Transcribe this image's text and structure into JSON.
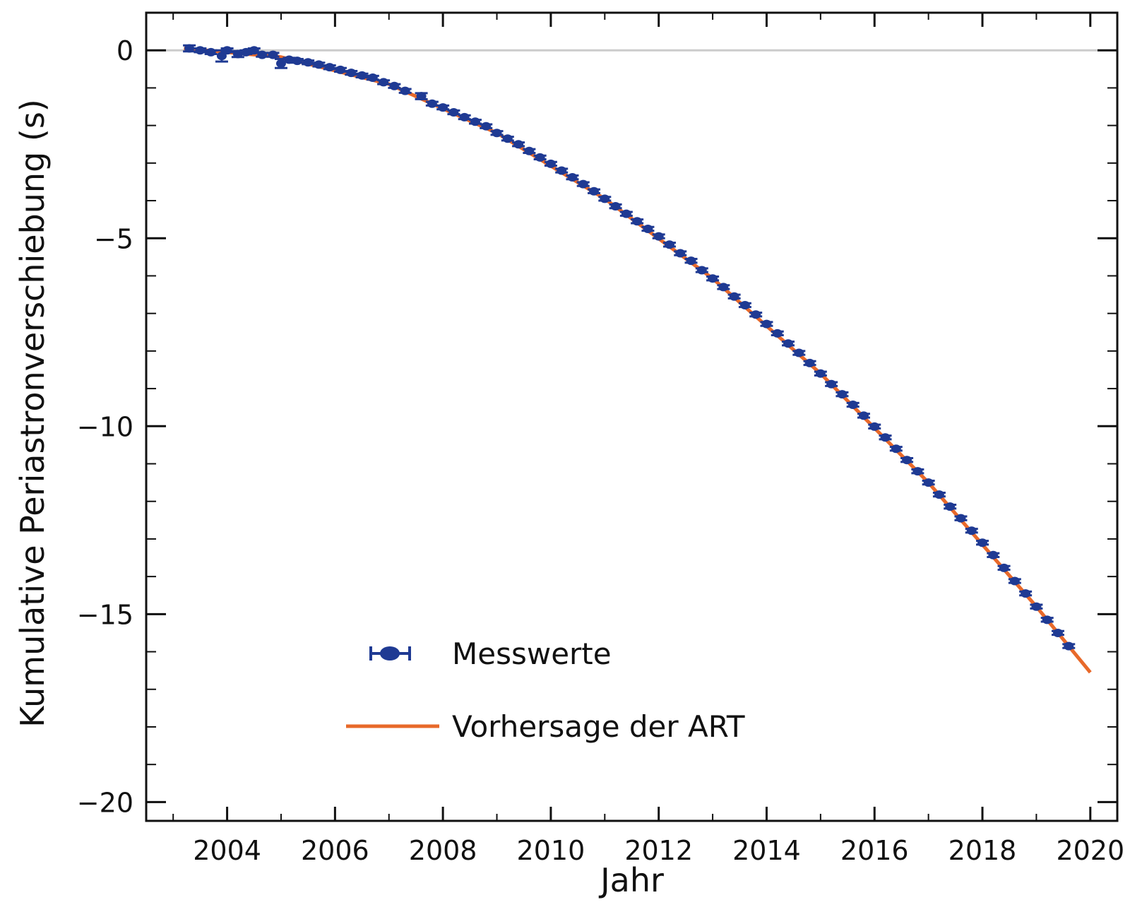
{
  "chart_data": {
    "type": "scatter",
    "title": "",
    "xlabel": "Jahr",
    "ylabel": "Kumulative  Periastronverschiebung  (s)",
    "xlim": [
      2002.5,
      2020.5
    ],
    "ylim": [
      -20.5,
      1.0
    ],
    "x_ticks": [
      2004,
      2006,
      2008,
      2010,
      2012,
      2014,
      2016,
      2018,
      2020
    ],
    "x_tick_labels": [
      "2004",
      "2006",
      "2008",
      "2010",
      "2012",
      "2014",
      "2016",
      "2018",
      "2020"
    ],
    "y_ticks": [
      0,
      -5,
      -10,
      -15,
      -20
    ],
    "y_tick_labels": [
      "0",
      "-5",
      "-10",
      "-15",
      "-20"
    ],
    "grid": false,
    "reference_line": {
      "y": 0,
      "color": "#cccccc"
    },
    "legend_placement": "bottom-center",
    "series": [
      {
        "name": "Messwerte",
        "kind": "points-with-errorbars",
        "color": "#1f3a93",
        "points": [
          {
            "x": 2003.3,
            "y": 0.05,
            "err": 0.08
          },
          {
            "x": 2003.5,
            "y": 0.0,
            "err": 0.05
          },
          {
            "x": 2003.7,
            "y": -0.05,
            "err": 0.05
          },
          {
            "x": 2003.9,
            "y": -0.15,
            "err": 0.15
          },
          {
            "x": 2004.0,
            "y": 0.0,
            "err": 0.05
          },
          {
            "x": 2004.2,
            "y": -0.1,
            "err": 0.08
          },
          {
            "x": 2004.35,
            "y": -0.05,
            "err": 0.05
          },
          {
            "x": 2004.5,
            "y": 0.0,
            "err": 0.05
          },
          {
            "x": 2004.65,
            "y": -0.12,
            "err": 0.05
          },
          {
            "x": 2004.85,
            "y": -0.12,
            "err": 0.05
          },
          {
            "x": 2005.0,
            "y": -0.35,
            "err": 0.12
          },
          {
            "x": 2005.15,
            "y": -0.25,
            "err": 0.05
          },
          {
            "x": 2005.3,
            "y": -0.28,
            "err": 0.05
          },
          {
            "x": 2005.5,
            "y": -0.32,
            "err": 0.05
          },
          {
            "x": 2005.7,
            "y": -0.38,
            "err": 0.05
          },
          {
            "x": 2005.9,
            "y": -0.45,
            "err": 0.05
          },
          {
            "x": 2006.1,
            "y": -0.52,
            "err": 0.05
          },
          {
            "x": 2006.3,
            "y": -0.6,
            "err": 0.05
          },
          {
            "x": 2006.5,
            "y": -0.67,
            "err": 0.05
          },
          {
            "x": 2006.7,
            "y": -0.73,
            "err": 0.05
          },
          {
            "x": 2006.9,
            "y": -0.85,
            "err": 0.05
          },
          {
            "x": 2007.1,
            "y": -0.95,
            "err": 0.05
          },
          {
            "x": 2007.3,
            "y": -1.08,
            "err": 0.05
          },
          {
            "x": 2007.6,
            "y": -1.22,
            "err": 0.08
          },
          {
            "x": 2007.8,
            "y": -1.42,
            "err": 0.05
          },
          {
            "x": 2008.0,
            "y": -1.52,
            "err": 0.05
          },
          {
            "x": 2008.2,
            "y": -1.65,
            "err": 0.05
          },
          {
            "x": 2008.4,
            "y": -1.78,
            "err": 0.05
          },
          {
            "x": 2008.6,
            "y": -1.9,
            "err": 0.05
          },
          {
            "x": 2008.8,
            "y": -2.02,
            "err": 0.05
          },
          {
            "x": 2009.0,
            "y": -2.2,
            "err": 0.05
          },
          {
            "x": 2009.2,
            "y": -2.35,
            "err": 0.05
          },
          {
            "x": 2009.4,
            "y": -2.5,
            "err": 0.05
          },
          {
            "x": 2009.6,
            "y": -2.68,
            "err": 0.05
          },
          {
            "x": 2009.8,
            "y": -2.85,
            "err": 0.05
          },
          {
            "x": 2010.0,
            "y": -3.02,
            "err": 0.05
          },
          {
            "x": 2010.2,
            "y": -3.2,
            "err": 0.05
          },
          {
            "x": 2010.4,
            "y": -3.38,
            "err": 0.05
          },
          {
            "x": 2010.6,
            "y": -3.56,
            "err": 0.05
          },
          {
            "x": 2010.8,
            "y": -3.75,
            "err": 0.05
          },
          {
            "x": 2011.0,
            "y": -3.95,
            "err": 0.05
          },
          {
            "x": 2011.2,
            "y": -4.15,
            "err": 0.05
          },
          {
            "x": 2011.4,
            "y": -4.35,
            "err": 0.05
          },
          {
            "x": 2011.6,
            "y": -4.55,
            "err": 0.05
          },
          {
            "x": 2011.8,
            "y": -4.75,
            "err": 0.05
          },
          {
            "x": 2012.0,
            "y": -4.95,
            "err": 0.05
          },
          {
            "x": 2012.2,
            "y": -5.17,
            "err": 0.05
          },
          {
            "x": 2012.4,
            "y": -5.4,
            "err": 0.05
          },
          {
            "x": 2012.6,
            "y": -5.6,
            "err": 0.05
          },
          {
            "x": 2012.8,
            "y": -5.85,
            "err": 0.05
          },
          {
            "x": 2013.0,
            "y": -6.07,
            "err": 0.05
          },
          {
            "x": 2013.2,
            "y": -6.3,
            "err": 0.05
          },
          {
            "x": 2013.4,
            "y": -6.55,
            "err": 0.05
          },
          {
            "x": 2013.6,
            "y": -6.78,
            "err": 0.05
          },
          {
            "x": 2013.8,
            "y": -7.03,
            "err": 0.05
          },
          {
            "x": 2014.0,
            "y": -7.28,
            "err": 0.05
          },
          {
            "x": 2014.2,
            "y": -7.53,
            "err": 0.05
          },
          {
            "x": 2014.4,
            "y": -7.8,
            "err": 0.05
          },
          {
            "x": 2014.6,
            "y": -8.05,
            "err": 0.05
          },
          {
            "x": 2014.8,
            "y": -8.32,
            "err": 0.05
          },
          {
            "x": 2015.0,
            "y": -8.6,
            "err": 0.05
          },
          {
            "x": 2015.2,
            "y": -8.88,
            "err": 0.05
          },
          {
            "x": 2015.4,
            "y": -9.15,
            "err": 0.05
          },
          {
            "x": 2015.6,
            "y": -9.43,
            "err": 0.05
          },
          {
            "x": 2015.8,
            "y": -9.72,
            "err": 0.05
          },
          {
            "x": 2016.0,
            "y": -10.01,
            "err": 0.05
          },
          {
            "x": 2016.2,
            "y": -10.3,
            "err": 0.05
          },
          {
            "x": 2016.4,
            "y": -10.6,
            "err": 0.05
          },
          {
            "x": 2016.6,
            "y": -10.9,
            "err": 0.05
          },
          {
            "x": 2016.8,
            "y": -11.2,
            "err": 0.05
          },
          {
            "x": 2017.0,
            "y": -11.5,
            "err": 0.05
          },
          {
            "x": 2017.2,
            "y": -11.82,
            "err": 0.05
          },
          {
            "x": 2017.4,
            "y": -12.14,
            "err": 0.05
          },
          {
            "x": 2017.6,
            "y": -12.45,
            "err": 0.05
          },
          {
            "x": 2017.8,
            "y": -12.78,
            "err": 0.05
          },
          {
            "x": 2018.0,
            "y": -13.1,
            "err": 0.05
          },
          {
            "x": 2018.2,
            "y": -13.43,
            "err": 0.05
          },
          {
            "x": 2018.4,
            "y": -13.77,
            "err": 0.05
          },
          {
            "x": 2018.6,
            "y": -14.12,
            "err": 0.05
          },
          {
            "x": 2018.8,
            "y": -14.45,
            "err": 0.05
          },
          {
            "x": 2019.0,
            "y": -14.8,
            "err": 0.05
          },
          {
            "x": 2019.2,
            "y": -15.15,
            "err": 0.05
          },
          {
            "x": 2019.4,
            "y": -15.5,
            "err": 0.05
          },
          {
            "x": 2019.6,
            "y": -15.85,
            "err": 0.05
          }
        ]
      },
      {
        "name": "Vorhersage der ART",
        "kind": "line",
        "color": "#e8692a",
        "points": [
          {
            "x": 2003.2,
            "y": 0.05
          },
          {
            "x": 2005.0,
            "y": -0.18
          },
          {
            "x": 2007.0,
            "y": -0.9
          },
          {
            "x": 2009.0,
            "y": -2.2
          },
          {
            "x": 2011.0,
            "y": -3.95
          },
          {
            "x": 2013.0,
            "y": -6.07
          },
          {
            "x": 2015.0,
            "y": -8.6
          },
          {
            "x": 2017.0,
            "y": -11.5
          },
          {
            "x": 2019.0,
            "y": -14.8
          },
          {
            "x": 2020.0,
            "y": -16.55
          }
        ]
      }
    ]
  },
  "legend": {
    "items": [
      {
        "label": "Messwerte",
        "color": "#1f3a93"
      },
      {
        "label": "Vorhersage der ART",
        "color": "#e8692a"
      }
    ]
  }
}
